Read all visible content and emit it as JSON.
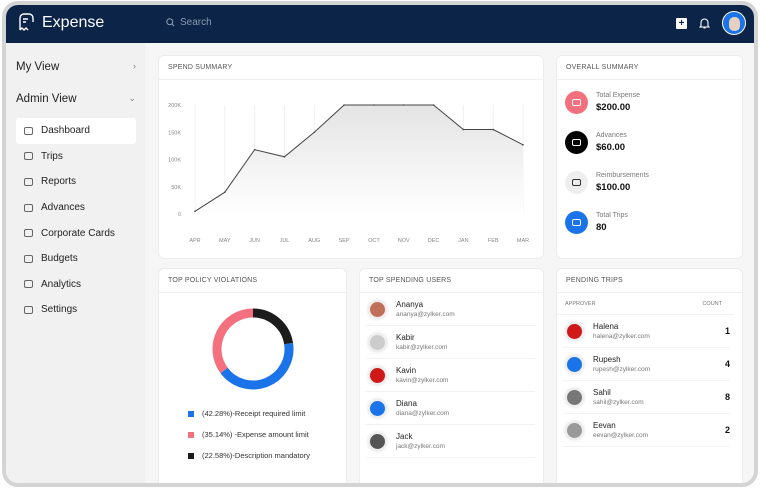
{
  "header": {
    "app_name": "Expense",
    "search_placeholder": "Search",
    "icons": [
      "receipt-logo-icon",
      "search-icon",
      "plus-icon",
      "bell-icon",
      "avatar"
    ]
  },
  "sidebar": {
    "my_view": "My View",
    "admin_view": "Admin View",
    "items": [
      {
        "label": "Dashboard",
        "icon": "dashboard-icon",
        "active": true
      },
      {
        "label": "Trips",
        "icon": "briefcase-icon"
      },
      {
        "label": "Reports",
        "icon": "folder-icon"
      },
      {
        "label": "Advances",
        "icon": "wallet-icon"
      },
      {
        "label": "Corporate Cards",
        "icon": "card-icon"
      },
      {
        "label": "Budgets",
        "icon": "budget-icon"
      },
      {
        "label": "Analytics",
        "icon": "analytics-icon"
      },
      {
        "label": "Settings",
        "icon": "gear-icon"
      }
    ]
  },
  "spend_summary": {
    "title": "SPEND SUMMARY"
  },
  "chart_data": [
    {
      "type": "area",
      "categories": [
        "APR",
        "MAY",
        "JUN",
        "JUL",
        "AUG",
        "SEP",
        "OCT",
        "NOV",
        "DEC",
        "JAN",
        "FEB",
        "MAR"
      ],
      "values": [
        5000,
        40000,
        118000,
        105000,
        150000,
        200000,
        200000,
        200000,
        200000,
        155000,
        155000,
        127000
      ],
      "yticks": [
        "0",
        "50K",
        "100K",
        "150K",
        "200K"
      ],
      "ylim": [
        0,
        200000
      ],
      "grid": "vertical"
    },
    {
      "type": "pie",
      "title": "TOP POLICY VIOLATIONS",
      "donut": true,
      "slices": [
        {
          "label": "(42.28%)-Receipt required limit",
          "value": 42.28,
          "color": "#1a73e8"
        },
        {
          "label": "(35.14%) -Expense amount limit",
          "value": 35.14,
          "color": "#f4707e"
        },
        {
          "label": "(22.58%)-Description mandatory",
          "value": 22.58,
          "color": "#1c1c1c"
        }
      ]
    }
  ],
  "overall": {
    "title": "OVERALL SUMMARY",
    "items": [
      {
        "label": "Total Expense",
        "value": "$200.00",
        "color": "#f4707e",
        "icon": "receipt-icon"
      },
      {
        "label": "Advances",
        "value": "$60.00",
        "color": "#000000",
        "icon": "wallet-icon"
      },
      {
        "label": "Reimbursements",
        "value": "$100.00",
        "color": "#eeeeee",
        "icon": "cash-icon"
      },
      {
        "label": "Total Trips",
        "value": "80",
        "color": "#1a73e8",
        "icon": "briefcase-icon"
      }
    ]
  },
  "top_users": {
    "title": "TOP SPENDING USERS",
    "users": [
      {
        "name": "Ananya",
        "email": "ananya@zylker.com",
        "color": "#c0705a"
      },
      {
        "name": "Kabir",
        "email": "kabir@zylker.com",
        "color": "#cccccc"
      },
      {
        "name": "Kavin",
        "email": "kavin@zylker.com",
        "color": "#d01818"
      },
      {
        "name": "Diana",
        "email": "diana@zylker.com",
        "color": "#1a73e8"
      },
      {
        "name": "Jack",
        "email": "jack@zylker.com",
        "color": "#555555"
      }
    ]
  },
  "pending": {
    "title": "PENDING TRIPS",
    "col_approver": "APPROVER",
    "col_count": "COUNT",
    "rows": [
      {
        "name": "Halena",
        "email": "halena@zylker.com",
        "count": "1",
        "color": "#d01818"
      },
      {
        "name": "Rupesh",
        "email": "rupesh@zylker.com",
        "count": "4",
        "color": "#1a73e8"
      },
      {
        "name": "Sahil",
        "email": "sahil@zylker.com",
        "count": "8",
        "color": "#777777"
      },
      {
        "name": "Eevan",
        "email": "eevan@zylker.com",
        "count": "2",
        "color": "#999999"
      }
    ]
  }
}
